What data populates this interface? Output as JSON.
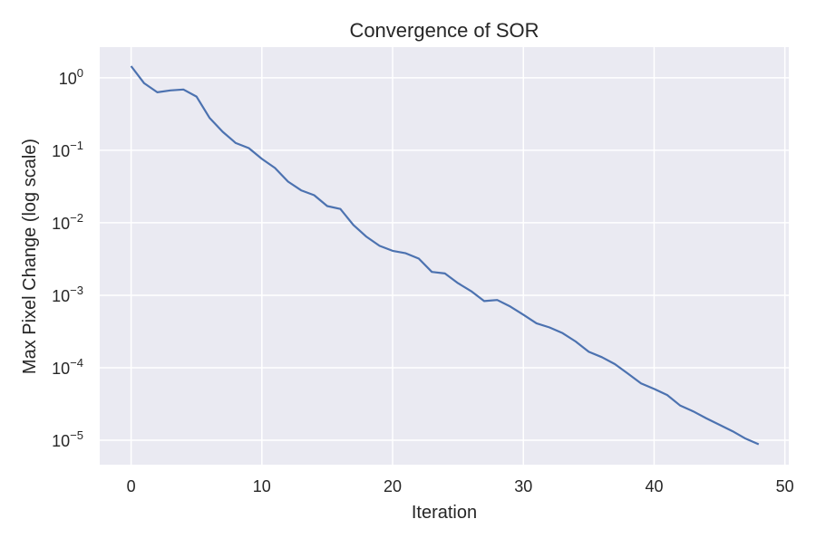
{
  "chart_data": {
    "type": "line",
    "title": "Convergence of SOR",
    "xlabel": "Iteration",
    "ylabel": "Max Pixel Change (log scale)",
    "yscale": "log",
    "xlim": [
      -2.4,
      50.3
    ],
    "ylim": [
      4.6e-06,
      2.65
    ],
    "grid": true,
    "background": "#eaeaf2",
    "line_color": "#4c72b0",
    "x_ticks": [
      "0",
      "10",
      "20",
      "30",
      "40",
      "50"
    ],
    "x_tick_values": [
      0,
      10,
      20,
      30,
      40,
      50
    ],
    "y_ticks": [
      "10^0",
      "10^-1",
      "10^-2",
      "10^-3",
      "10^-4",
      "10^-5"
    ],
    "y_tick_exponents": [
      0,
      -1,
      -2,
      -3,
      -4,
      -5
    ],
    "x": [
      0,
      1,
      2,
      3,
      4,
      5,
      6,
      7,
      8,
      9,
      10,
      11,
      12,
      13,
      14,
      15,
      16,
      17,
      18,
      19,
      20,
      21,
      22,
      23,
      24,
      25,
      26,
      27,
      28,
      29,
      30,
      31,
      32,
      33,
      34,
      35,
      36,
      37,
      38,
      39,
      40,
      41,
      42,
      43,
      44,
      45,
      46,
      47,
      48
    ],
    "values": [
      1.45,
      0.84,
      0.63,
      0.67,
      0.69,
      0.55,
      0.28,
      0.18,
      0.126,
      0.107,
      0.076,
      0.057,
      0.037,
      0.028,
      0.024,
      0.017,
      0.0155,
      0.0093,
      0.0064,
      0.0048,
      0.0041,
      0.0038,
      0.0032,
      0.0021,
      0.002,
      0.00147,
      0.00114,
      0.00083,
      0.00086,
      0.0007,
      0.00054,
      0.00041,
      0.00036,
      0.0003,
      0.00023,
      0.000166,
      0.00014,
      0.000112,
      8.3e-05,
      6.1e-05,
      5.1e-05,
      4.2e-05,
      3e-05,
      2.5e-05,
      2e-05,
      1.63e-05,
      1.33e-05,
      1.05e-05,
      8.8e-06
    ]
  }
}
